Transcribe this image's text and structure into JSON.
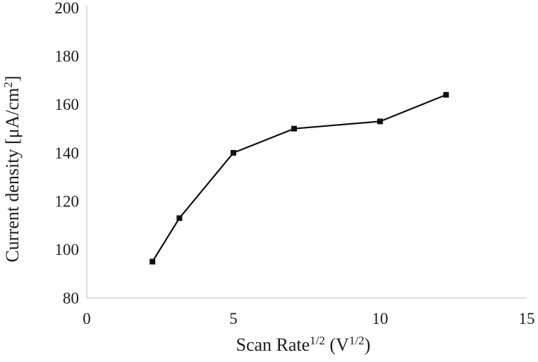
{
  "chart_data": {
    "type": "line",
    "title": "",
    "xlabel": "Scan Rate^{1/2} (V^{1/2})",
    "ylabel": "Current density [μA/cm^{2}]",
    "xlabel_parts": [
      {
        "text": "Scan Rate"
      },
      {
        "text": "1/2",
        "sup": true
      },
      {
        "text": " (V"
      },
      {
        "text": "1/2",
        "sup": true
      },
      {
        "text": ")"
      }
    ],
    "ylabel_parts": [
      {
        "text": "Current density [μA/cm"
      },
      {
        "text": "2",
        "sup": true
      },
      {
        "text": "]"
      }
    ],
    "xlim": [
      0,
      15
    ],
    "ylim": [
      80,
      200
    ],
    "xticks": [
      0,
      5,
      10,
      15
    ],
    "yticks": [
      80,
      100,
      120,
      140,
      160,
      180,
      200
    ],
    "grid": false,
    "legend": "none",
    "series": [
      {
        "name": "current-density",
        "x": [
          2.24,
          3.16,
          5.0,
          7.07,
          10.0,
          12.25
        ],
        "y": [
          95,
          113,
          140,
          150,
          153,
          164
        ],
        "marker": "square",
        "color": "#0f0f0f"
      }
    ],
    "axis_line_color": "#c9c9c9",
    "text_color": "#1c1c1c"
  }
}
